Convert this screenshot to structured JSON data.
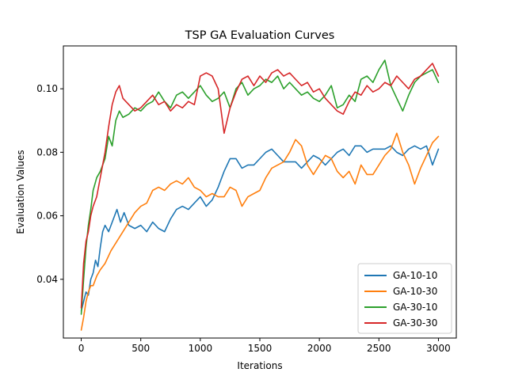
{
  "chart_data": {
    "type": "line",
    "title": "TSP GA Evaluation Curves",
    "xlabel": "Iterations",
    "ylabel": "Evaluation Values",
    "xlim": [
      -150,
      3150
    ],
    "ylim": [
      0.0215,
      0.1135
    ],
    "xticks": [
      0,
      500,
      1000,
      1500,
      2000,
      2500,
      3000
    ],
    "yticks": [
      0.04,
      0.06,
      0.08,
      0.1
    ],
    "ytick_labels": [
      "0.04",
      "0.06",
      "0.08",
      "0.10"
    ],
    "grid": false,
    "legend_position": "lower-right",
    "series": [
      {
        "name": "GA-10-10",
        "color": "#1f77b4",
        "points": [
          [
            0,
            0.03
          ],
          [
            20,
            0.033
          ],
          [
            40,
            0.036
          ],
          [
            60,
            0.035
          ],
          [
            80,
            0.04
          ],
          [
            100,
            0.042
          ],
          [
            120,
            0.046
          ],
          [
            140,
            0.044
          ],
          [
            160,
            0.05
          ],
          [
            180,
            0.055
          ],
          [
            200,
            0.057
          ],
          [
            230,
            0.055
          ],
          [
            260,
            0.058
          ],
          [
            280,
            0.06
          ],
          [
            300,
            0.062
          ],
          [
            330,
            0.058
          ],
          [
            360,
            0.061
          ],
          [
            400,
            0.057
          ],
          [
            450,
            0.056
          ],
          [
            500,
            0.057
          ],
          [
            550,
            0.055
          ],
          [
            600,
            0.058
          ],
          [
            650,
            0.056
          ],
          [
            700,
            0.055
          ],
          [
            750,
            0.059
          ],
          [
            800,
            0.062
          ],
          [
            850,
            0.063
          ],
          [
            900,
            0.062
          ],
          [
            950,
            0.064
          ],
          [
            1000,
            0.066
          ],
          [
            1050,
            0.063
          ],
          [
            1100,
            0.065
          ],
          [
            1150,
            0.069
          ],
          [
            1200,
            0.074
          ],
          [
            1250,
            0.078
          ],
          [
            1300,
            0.078
          ],
          [
            1350,
            0.075
          ],
          [
            1400,
            0.076
          ],
          [
            1450,
            0.076
          ],
          [
            1500,
            0.078
          ],
          [
            1550,
            0.08
          ],
          [
            1600,
            0.081
          ],
          [
            1650,
            0.079
          ],
          [
            1700,
            0.077
          ],
          [
            1750,
            0.077
          ],
          [
            1800,
            0.077
          ],
          [
            1850,
            0.075
          ],
          [
            1900,
            0.077
          ],
          [
            1950,
            0.079
          ],
          [
            2000,
            0.078
          ],
          [
            2050,
            0.076
          ],
          [
            2100,
            0.078
          ],
          [
            2150,
            0.08
          ],
          [
            2200,
            0.081
          ],
          [
            2250,
            0.079
          ],
          [
            2300,
            0.082
          ],
          [
            2350,
            0.082
          ],
          [
            2400,
            0.08
          ],
          [
            2450,
            0.081
          ],
          [
            2500,
            0.081
          ],
          [
            2550,
            0.081
          ],
          [
            2600,
            0.082
          ],
          [
            2650,
            0.08
          ],
          [
            2700,
            0.079
          ],
          [
            2750,
            0.081
          ],
          [
            2800,
            0.082
          ],
          [
            2850,
            0.081
          ],
          [
            2900,
            0.082
          ],
          [
            2950,
            0.076
          ],
          [
            3000,
            0.081
          ]
        ]
      },
      {
        "name": "GA-10-30",
        "color": "#ff7f0e",
        "points": [
          [
            0,
            0.024
          ],
          [
            20,
            0.028
          ],
          [
            40,
            0.033
          ],
          [
            60,
            0.036
          ],
          [
            80,
            0.038
          ],
          [
            100,
            0.038
          ],
          [
            130,
            0.041
          ],
          [
            160,
            0.043
          ],
          [
            200,
            0.045
          ],
          [
            250,
            0.049
          ],
          [
            300,
            0.052
          ],
          [
            350,
            0.055
          ],
          [
            400,
            0.058
          ],
          [
            450,
            0.061
          ],
          [
            500,
            0.063
          ],
          [
            550,
            0.064
          ],
          [
            600,
            0.068
          ],
          [
            650,
            0.069
          ],
          [
            700,
            0.068
          ],
          [
            750,
            0.07
          ],
          [
            800,
            0.071
          ],
          [
            850,
            0.07
          ],
          [
            900,
            0.072
          ],
          [
            950,
            0.069
          ],
          [
            1000,
            0.068
          ],
          [
            1050,
            0.066
          ],
          [
            1100,
            0.067
          ],
          [
            1150,
            0.066
          ],
          [
            1200,
            0.066
          ],
          [
            1250,
            0.069
          ],
          [
            1300,
            0.068
          ],
          [
            1350,
            0.063
          ],
          [
            1400,
            0.066
          ],
          [
            1450,
            0.067
          ],
          [
            1500,
            0.068
          ],
          [
            1550,
            0.072
          ],
          [
            1600,
            0.075
          ],
          [
            1650,
            0.076
          ],
          [
            1700,
            0.077
          ],
          [
            1750,
            0.08
          ],
          [
            1800,
            0.084
          ],
          [
            1850,
            0.082
          ],
          [
            1900,
            0.076
          ],
          [
            1950,
            0.073
          ],
          [
            2000,
            0.076
          ],
          [
            2050,
            0.079
          ],
          [
            2100,
            0.078
          ],
          [
            2150,
            0.074
          ],
          [
            2200,
            0.072
          ],
          [
            2250,
            0.074
          ],
          [
            2300,
            0.07
          ],
          [
            2350,
            0.076
          ],
          [
            2400,
            0.073
          ],
          [
            2450,
            0.073
          ],
          [
            2500,
            0.076
          ],
          [
            2550,
            0.079
          ],
          [
            2600,
            0.081
          ],
          [
            2650,
            0.086
          ],
          [
            2700,
            0.08
          ],
          [
            2750,
            0.076
          ],
          [
            2800,
            0.07
          ],
          [
            2850,
            0.075
          ],
          [
            2900,
            0.079
          ],
          [
            2950,
            0.083
          ],
          [
            3000,
            0.085
          ]
        ]
      },
      {
        "name": "GA-30-10",
        "color": "#2ca02c",
        "points": [
          [
            0,
            0.029
          ],
          [
            20,
            0.04
          ],
          [
            40,
            0.05
          ],
          [
            60,
            0.057
          ],
          [
            80,
            0.062
          ],
          [
            100,
            0.068
          ],
          [
            130,
            0.072
          ],
          [
            160,
            0.074
          ],
          [
            200,
            0.078
          ],
          [
            230,
            0.085
          ],
          [
            260,
            0.082
          ],
          [
            290,
            0.09
          ],
          [
            320,
            0.093
          ],
          [
            350,
            0.091
          ],
          [
            400,
            0.092
          ],
          [
            450,
            0.094
          ],
          [
            500,
            0.093
          ],
          [
            550,
            0.095
          ],
          [
            600,
            0.096
          ],
          [
            650,
            0.099
          ],
          [
            700,
            0.096
          ],
          [
            750,
            0.094
          ],
          [
            800,
            0.098
          ],
          [
            850,
            0.099
          ],
          [
            900,
            0.097
          ],
          [
            950,
            0.099
          ],
          [
            1000,
            0.101
          ],
          [
            1050,
            0.098
          ],
          [
            1100,
            0.096
          ],
          [
            1150,
            0.097
          ],
          [
            1200,
            0.099
          ],
          [
            1250,
            0.094
          ],
          [
            1300,
            0.1
          ],
          [
            1350,
            0.102
          ],
          [
            1400,
            0.098
          ],
          [
            1450,
            0.1
          ],
          [
            1500,
            0.101
          ],
          [
            1550,
            0.103
          ],
          [
            1600,
            0.102
          ],
          [
            1650,
            0.104
          ],
          [
            1700,
            0.1
          ],
          [
            1750,
            0.102
          ],
          [
            1800,
            0.1
          ],
          [
            1850,
            0.098
          ],
          [
            1900,
            0.099
          ],
          [
            1950,
            0.097
          ],
          [
            2000,
            0.096
          ],
          [
            2050,
            0.098
          ],
          [
            2100,
            0.101
          ],
          [
            2150,
            0.094
          ],
          [
            2200,
            0.095
          ],
          [
            2250,
            0.098
          ],
          [
            2300,
            0.096
          ],
          [
            2350,
            0.103
          ],
          [
            2400,
            0.104
          ],
          [
            2450,
            0.102
          ],
          [
            2500,
            0.106
          ],
          [
            2550,
            0.109
          ],
          [
            2600,
            0.101
          ],
          [
            2650,
            0.097
          ],
          [
            2700,
            0.093
          ],
          [
            2750,
            0.098
          ],
          [
            2800,
            0.102
          ],
          [
            2850,
            0.104
          ],
          [
            2900,
            0.105
          ],
          [
            2950,
            0.106
          ],
          [
            3000,
            0.102
          ]
        ]
      },
      {
        "name": "GA-30-30",
        "color": "#d62728",
        "points": [
          [
            0,
            0.031
          ],
          [
            20,
            0.045
          ],
          [
            40,
            0.052
          ],
          [
            60,
            0.055
          ],
          [
            80,
            0.06
          ],
          [
            100,
            0.063
          ],
          [
            130,
            0.066
          ],
          [
            160,
            0.072
          ],
          [
            200,
            0.08
          ],
          [
            230,
            0.088
          ],
          [
            260,
            0.095
          ],
          [
            290,
            0.099
          ],
          [
            320,
            0.101
          ],
          [
            350,
            0.097
          ],
          [
            400,
            0.095
          ],
          [
            450,
            0.093
          ],
          [
            500,
            0.094
          ],
          [
            550,
            0.096
          ],
          [
            600,
            0.098
          ],
          [
            650,
            0.095
          ],
          [
            700,
            0.096
          ],
          [
            750,
            0.093
          ],
          [
            800,
            0.095
          ],
          [
            850,
            0.094
          ],
          [
            900,
            0.096
          ],
          [
            950,
            0.095
          ],
          [
            1000,
            0.104
          ],
          [
            1050,
            0.105
          ],
          [
            1100,
            0.104
          ],
          [
            1150,
            0.1
          ],
          [
            1200,
            0.086
          ],
          [
            1250,
            0.094
          ],
          [
            1300,
            0.099
          ],
          [
            1350,
            0.103
          ],
          [
            1400,
            0.104
          ],
          [
            1450,
            0.101
          ],
          [
            1500,
            0.104
          ],
          [
            1550,
            0.102
          ],
          [
            1600,
            0.105
          ],
          [
            1650,
            0.106
          ],
          [
            1700,
            0.104
          ],
          [
            1750,
            0.105
          ],
          [
            1800,
            0.103
          ],
          [
            1850,
            0.101
          ],
          [
            1900,
            0.102
          ],
          [
            1950,
            0.099
          ],
          [
            2000,
            0.1
          ],
          [
            2050,
            0.097
          ],
          [
            2100,
            0.095
          ],
          [
            2150,
            0.093
          ],
          [
            2200,
            0.092
          ],
          [
            2250,
            0.096
          ],
          [
            2300,
            0.099
          ],
          [
            2350,
            0.098
          ],
          [
            2400,
            0.101
          ],
          [
            2450,
            0.099
          ],
          [
            2500,
            0.1
          ],
          [
            2550,
            0.102
          ],
          [
            2600,
            0.101
          ],
          [
            2650,
            0.104
          ],
          [
            2700,
            0.102
          ],
          [
            2750,
            0.1
          ],
          [
            2800,
            0.103
          ],
          [
            2850,
            0.104
          ],
          [
            2900,
            0.106
          ],
          [
            2950,
            0.108
          ],
          [
            3000,
            0.104
          ]
        ]
      }
    ]
  }
}
